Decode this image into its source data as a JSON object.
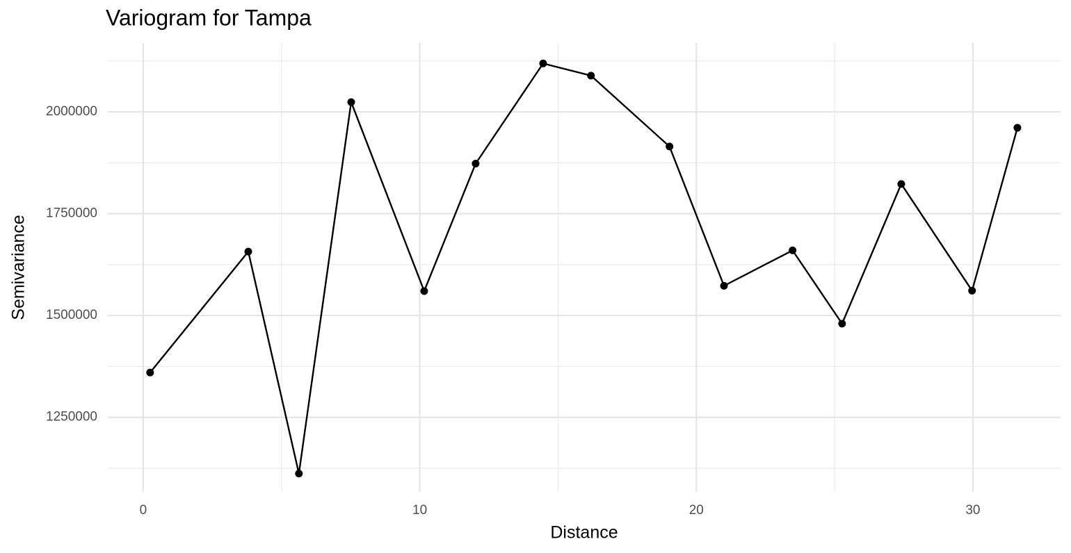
{
  "chart_data": {
    "type": "line",
    "title": "Variogram for Tampa",
    "x_label": "Distance",
    "y_label": "Semivariance",
    "x": [
      0.25,
      3.8,
      5.63,
      7.52,
      10.16,
      12.02,
      14.46,
      16.19,
      19.03,
      21.0,
      23.48,
      25.27,
      27.41,
      29.97,
      31.61
    ],
    "series": [
      {
        "name": "Semivariance",
        "color": "#000000",
        "values": [
          1360000,
          1657000,
          1112000,
          2024000,
          1560000,
          1873000,
          2119000,
          2089000,
          1915000,
          1573000,
          1660000,
          1480000,
          1823000,
          1561000,
          1961000
        ]
      }
    ],
    "xlim": [
      -1.28,
      33.17
    ],
    "ylim": [
      1067000,
      2169000
    ],
    "xticks": [
      0,
      10,
      20,
      30
    ],
    "yticks": [
      1250000,
      1500000,
      1750000,
      2000000
    ],
    "minor_xticks": [
      5,
      15,
      25
    ],
    "minor_yticks": [
      1125000,
      1375000,
      1625000,
      1875000,
      2125000
    ],
    "grid": true,
    "markers": true
  }
}
